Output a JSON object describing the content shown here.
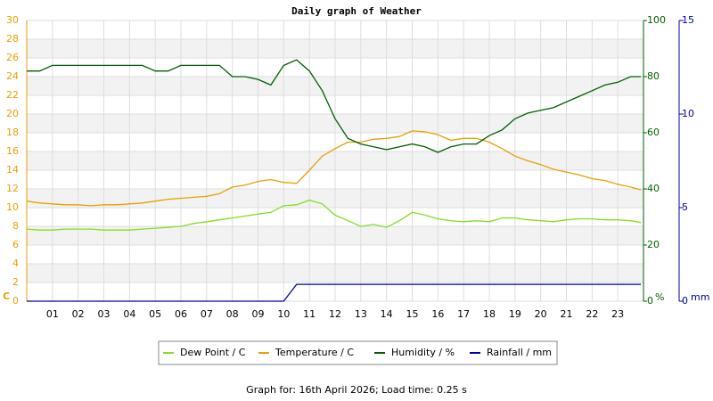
{
  "chart_data": {
    "type": "line",
    "title": "Daily graph of Weather",
    "x": [
      0,
      0.5,
      1,
      1.5,
      2,
      2.5,
      3,
      3.5,
      4,
      4.5,
      5,
      5.5,
      6,
      6.5,
      7,
      7.5,
      8,
      8.5,
      9,
      9.5,
      10,
      10.5,
      11,
      11.5,
      12,
      12.5,
      13,
      13.5,
      14,
      14.5,
      15,
      15.5,
      16,
      16.5,
      17,
      17.5,
      18,
      18.5,
      19,
      19.5,
      20,
      20.5,
      21,
      21.5,
      22,
      22.5,
      23,
      23.5,
      23.9
    ],
    "xlim": [
      0,
      24
    ],
    "xticks": [
      {
        "value": 1,
        "label": "01"
      },
      {
        "value": 2,
        "label": "02"
      },
      {
        "value": 3,
        "label": "03"
      },
      {
        "value": 4,
        "label": "04"
      },
      {
        "value": 5,
        "label": "05"
      },
      {
        "value": 6,
        "label": "06"
      },
      {
        "value": 7,
        "label": "07"
      },
      {
        "value": 8,
        "label": "08"
      },
      {
        "value": 9,
        "label": "09"
      },
      10,
      11,
      12,
      13,
      14,
      15,
      16,
      17,
      18,
      19,
      20,
      21,
      22,
      23
    ],
    "ylim": [
      0,
      30
    ],
    "yticks": [
      0,
      2,
      4,
      6,
      8,
      10,
      12,
      14,
      16,
      18,
      20,
      22,
      24,
      26,
      28,
      30
    ],
    "ylabel": "C",
    "ycolor": "#e8a000",
    "y2lim": [
      0,
      100
    ],
    "y2ticks": [
      0,
      20,
      40,
      60,
      80,
      100
    ],
    "y2label": "%",
    "y2color": "#006000",
    "y3lim": [
      0,
      15
    ],
    "y3ticks": [
      0,
      5,
      10,
      15
    ],
    "y3label": "mm",
    "y3color": "#0000a0",
    "grid": true,
    "series": [
      {
        "name": "Dew Point / C",
        "color": "#80e020",
        "values": [
          7.7,
          7.6,
          7.6,
          7.7,
          7.7,
          7.7,
          7.6,
          7.6,
          7.6,
          7.7,
          7.8,
          7.9,
          8.0,
          8.3,
          8.5,
          8.7,
          8.9,
          9.1,
          9.3,
          9.5,
          10.2,
          10.3,
          10.8,
          10.4,
          9.2,
          8.6,
          8.0,
          8.2,
          7.9,
          8.6,
          9.5,
          9.2,
          8.8,
          8.6,
          8.5,
          8.6,
          8.5,
          8.9,
          8.9,
          8.7,
          8.6,
          8.5,
          8.7,
          8.8,
          8.8,
          8.7,
          8.7,
          8.6,
          8.4
        ]
      },
      {
        "name": "Temperature / C",
        "color": "#e8a000",
        "values": [
          10.7,
          10.5,
          10.4,
          10.3,
          10.3,
          10.2,
          10.3,
          10.3,
          10.4,
          10.5,
          10.7,
          10.9,
          11.0,
          11.1,
          11.2,
          11.5,
          12.2,
          12.4,
          12.8,
          13.0,
          12.7,
          12.6,
          14.0,
          15.5,
          16.3,
          17.0,
          17.0,
          17.3,
          17.4,
          17.6,
          18.2,
          18.1,
          17.8,
          17.2,
          17.4,
          17.4,
          17.0,
          16.3,
          15.5,
          15.0,
          14.6,
          14.1,
          13.8,
          13.5,
          13.1,
          12.9,
          12.5,
          12.2,
          11.9
        ]
      },
      {
        "name": "Humidity / %",
        "color": "#006000",
        "axis": "y2",
        "values": [
          82,
          82,
          84,
          84,
          84,
          84,
          84,
          84,
          84,
          84,
          82,
          82,
          84,
          84,
          84,
          84,
          80,
          80,
          79,
          77,
          84,
          86,
          82,
          75,
          65,
          58,
          56,
          55,
          54,
          55,
          56,
          55,
          53,
          55,
          56,
          56,
          59,
          61,
          65,
          67,
          68,
          69,
          71,
          73,
          75,
          77,
          78,
          80,
          80
        ]
      },
      {
        "name": "Rainfall / mm",
        "color": "#0000a0",
        "axis": "y3",
        "values": [
          0,
          0,
          0,
          0,
          0,
          0,
          0,
          0,
          0,
          0,
          0,
          0,
          0,
          0,
          0,
          0,
          0,
          0,
          0,
          0,
          0,
          0.9,
          0.9,
          0.9,
          0.9,
          0.9,
          0.9,
          0.9,
          0.9,
          0.9,
          0.9,
          0.9,
          0.9,
          0.9,
          0.9,
          0.9,
          0.9,
          0.9,
          0.9,
          0.9,
          0.9,
          0.9,
          0.9,
          0.9,
          0.9,
          0.9,
          0.9,
          0.9,
          0.9
        ]
      }
    ],
    "footer": "Graph for: 16th April 2026; Load time: 0.25 s"
  }
}
